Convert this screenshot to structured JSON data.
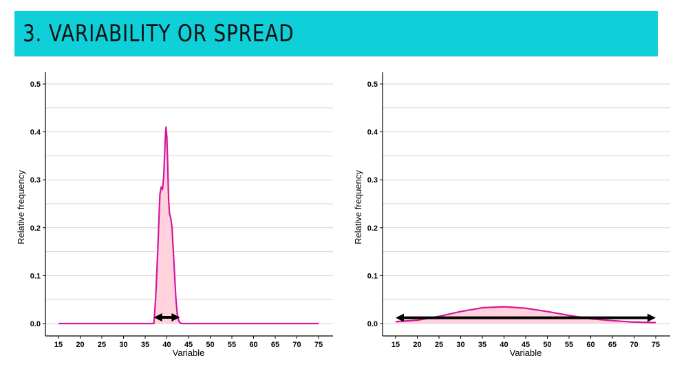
{
  "header": {
    "title": "3. VARIABILITY OR SPREAD",
    "background_color": "#0fcfd9"
  },
  "colors": {
    "curve": "#d4179e",
    "fill": "#ffd2dc",
    "arrow": "#000000",
    "grid": "#d3d3d3"
  },
  "chart_data": [
    {
      "type": "area",
      "title": "",
      "xlabel": "Variable",
      "ylabel": "Relative frequency",
      "xlim": [
        15,
        75
      ],
      "ylim": [
        0,
        0.5
      ],
      "xticks": [
        15,
        20,
        25,
        30,
        35,
        40,
        45,
        50,
        55,
        60,
        65,
        70,
        75
      ],
      "yticks": [
        0.0,
        0.1,
        0.2,
        0.3,
        0.4,
        0.5
      ],
      "ytick_labels": [
        "0.0",
        "0.1",
        "0.2",
        "0.3",
        "0.4",
        "0.5"
      ],
      "grid": true,
      "legend": "none",
      "x": [
        15,
        37,
        37.4,
        37.8,
        38.1,
        38.4,
        38.7,
        39.0,
        39.3,
        39.6,
        39.8,
        40.0,
        40.2,
        40.4,
        40.6,
        40.9,
        41.2,
        41.5,
        41.8,
        42.1,
        42.4,
        42.8,
        43.3,
        75
      ],
      "y": [
        0.0,
        0.0,
        0.05,
        0.13,
        0.2,
        0.27,
        0.285,
        0.28,
        0.31,
        0.38,
        0.41,
        0.39,
        0.33,
        0.26,
        0.23,
        0.22,
        0.2,
        0.15,
        0.1,
        0.05,
        0.02,
        0.004,
        0.0,
        0.0
      ],
      "annotation": {
        "type": "double-arrow",
        "x_start": 37,
        "x_end": 43,
        "y": 0.013
      }
    },
    {
      "type": "area",
      "title": "",
      "xlabel": "Variable",
      "ylabel": "Relative frequency",
      "xlim": [
        15,
        75
      ],
      "ylim": [
        0,
        0.5
      ],
      "xticks": [
        15,
        20,
        25,
        30,
        35,
        40,
        45,
        50,
        55,
        60,
        65,
        70,
        75
      ],
      "yticks": [
        0.0,
        0.1,
        0.2,
        0.3,
        0.4,
        0.5
      ],
      "ytick_labels": [
        "0.0",
        "0.1",
        "0.2",
        "0.3",
        "0.4",
        "0.5"
      ],
      "grid": true,
      "legend": "none",
      "x": [
        15,
        20,
        25,
        30,
        35,
        40,
        45,
        50,
        55,
        60,
        65,
        70,
        75
      ],
      "y": [
        0.004,
        0.007,
        0.015,
        0.025,
        0.033,
        0.035,
        0.032,
        0.025,
        0.017,
        0.01,
        0.006,
        0.003,
        0.002
      ],
      "annotation": {
        "type": "double-arrow",
        "x_start": 15,
        "x_end": 75,
        "y": 0.012
      }
    }
  ]
}
